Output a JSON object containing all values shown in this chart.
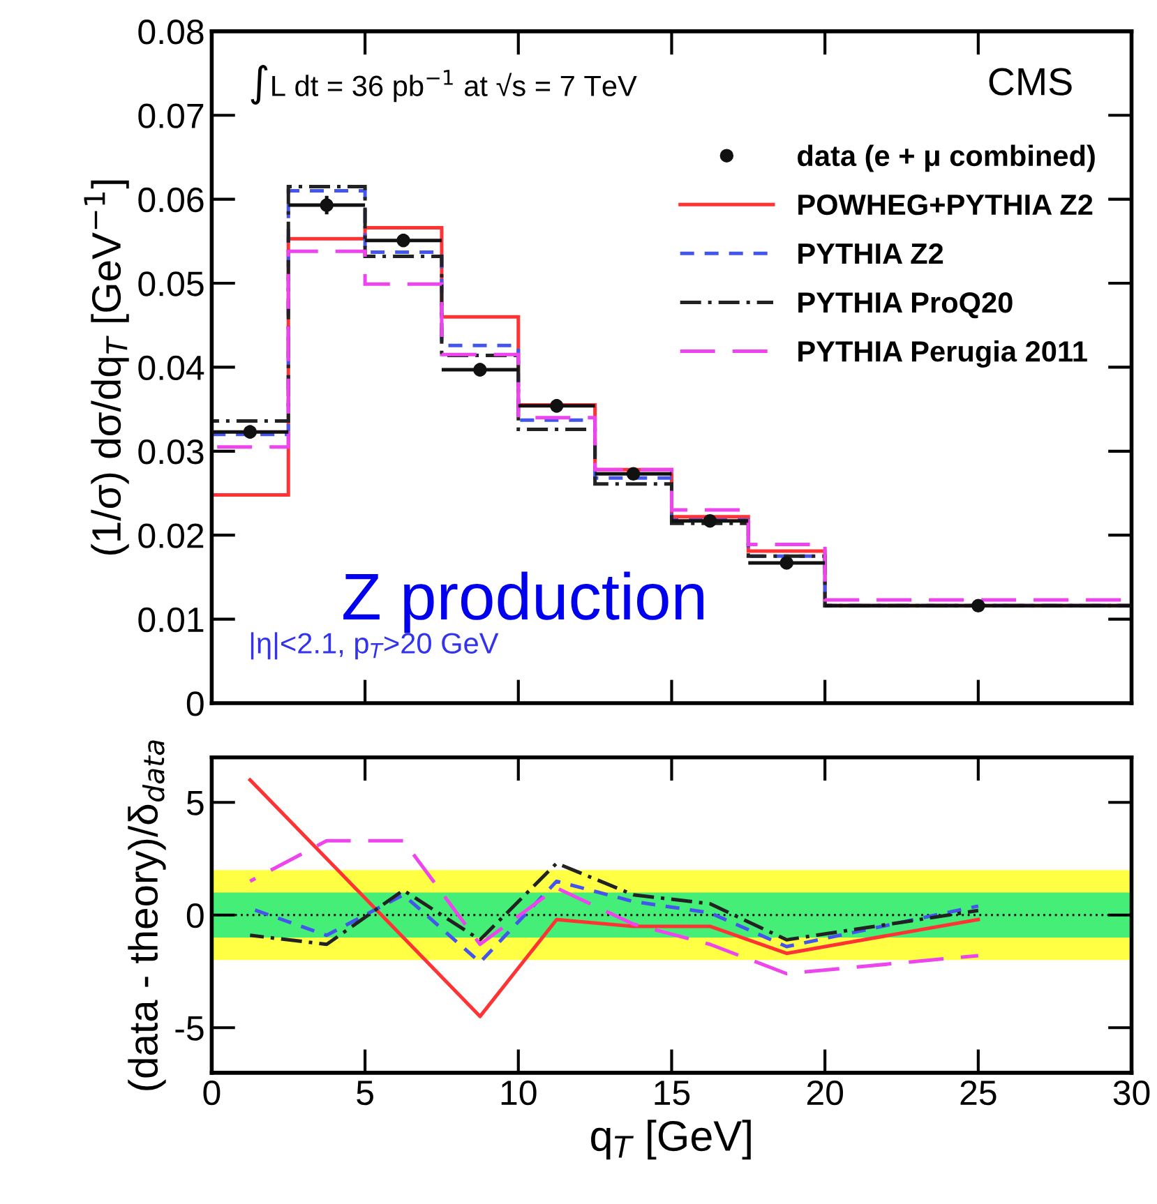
{
  "chart_data": [
    {
      "type": "histogram",
      "ylabel": "(1/σ) dσ/dq$_{T}$ [GeV$^{−1}$]",
      "bins": [
        0,
        2.5,
        5,
        7.5,
        10,
        12.5,
        15,
        17.5,
        20,
        30
      ],
      "xlim": [
        0,
        30
      ],
      "xticks": [
        0,
        5,
        10,
        15,
        20,
        25,
        30
      ],
      "ylim": [
        0,
        0.08
      ],
      "yticks": [
        0,
        0.01,
        0.02,
        0.03,
        0.04,
        0.05,
        0.06,
        0.07,
        0.08
      ],
      "tick_labels": "y",
      "grid": false,
      "legend": "top right",
      "annotations": [
        "∫L dt = 36 pb$^{−1}$ at √s = 7 TeV",
        "CMS",
        "Z production",
        "|η|<2.1, p$_{T}$>20 GeV"
      ],
      "series": [
        {
          "name": "data (e + μ combined)",
          "type": "scatter",
          "marker": "circle",
          "color": "#111111",
          "x": [
            1.25,
            3.75,
            6.25,
            8.75,
            11.25,
            13.75,
            16.25,
            18.75,
            25
          ],
          "values": [
            0.0323,
            0.0593,
            0.0551,
            0.0397,
            0.0354,
            0.0273,
            0.0217,
            0.0167,
            0.0116
          ],
          "errors": [
            0.0008,
            0.0011,
            0.0008,
            0.0008,
            0.0008,
            0.0007,
            0.0006,
            0.0006,
            0.0002
          ],
          "xerrors": [
            1.25,
            1.25,
            1.25,
            1.25,
            1.25,
            1.25,
            1.25,
            1.25,
            5
          ]
        },
        {
          "name": "POWHEG+PYTHIA Z2",
          "color": "#ff3333",
          "line_style": "solid",
          "values": [
            0.0248,
            0.0553,
            0.0566,
            0.046,
            0.0355,
            0.0278,
            0.0222,
            0.0181,
            0.0116
          ]
        },
        {
          "name": "PYTHIA Z2",
          "color": "#4455ee",
          "line_style": "dashed",
          "values": [
            0.032,
            0.061,
            0.0537,
            0.0426,
            0.0337,
            0.0268,
            0.0218,
            0.0175,
            0.0116
          ]
        },
        {
          "name": "PYTHIA ProQ20",
          "color": "#222222",
          "line_style": "dashdot",
          "values": [
            0.0336,
            0.0615,
            0.0532,
            0.0414,
            0.0326,
            0.0261,
            0.0214,
            0.0175,
            0.0116
          ]
        },
        {
          "name": "PYTHIA Perugia 2011",
          "color": "#ee44ee",
          "line_style": "longdash",
          "values": [
            0.0305,
            0.0538,
            0.0499,
            0.0415,
            0.034,
            0.0278,
            0.023,
            0.0189,
            0.0123
          ]
        }
      ]
    },
    {
      "type": "line",
      "xlabel": "q$_{T}$ [GeV]",
      "ylabel": "(data - theory)/δ$_{data}$",
      "xlim": [
        0,
        30
      ],
      "xticks": [
        0,
        5,
        10,
        15,
        20,
        25,
        30
      ],
      "ylim": [
        -7,
        7
      ],
      "yticks": [
        -5,
        0,
        5
      ],
      "grid": false,
      "bands": [
        {
          "axis": "y",
          "from": -2,
          "to": 2,
          "color": "#ffff44"
        },
        {
          "axis": "y",
          "from": -1,
          "to": 1,
          "color": "#44ee77"
        }
      ],
      "ref_lines": [
        {
          "axis": "y",
          "value": 0,
          "color": "#000000",
          "line_style": "dotted"
        }
      ],
      "x": [
        1.25,
        3.75,
        6.25,
        8.75,
        11.25,
        13.75,
        16.25,
        18.75,
        25
      ],
      "series": [
        {
          "color": "#ff3333",
          "line_style": "solid",
          "values": [
            6.0,
            2.5,
            -1.0,
            -4.5,
            -0.2,
            -0.5,
            -0.5,
            -1.7,
            -0.2
          ]
        },
        {
          "color": "#4455ee",
          "line_style": "dashed",
          "values": [
            0.3,
            -0.9,
            0.9,
            -2.1,
            1.5,
            0.6,
            0.1,
            -1.4,
            0.4
          ]
        },
        {
          "color": "#222222",
          "line_style": "dashdot",
          "values": [
            -0.9,
            -1.3,
            1.1,
            -1.1,
            2.3,
            0.9,
            0.5,
            -1.1,
            0.2
          ]
        },
        {
          "color": "#ee44ee",
          "line_style": "longdash",
          "values": [
            1.5,
            3.3,
            3.3,
            -1.3,
            1.2,
            -0.4,
            -1.3,
            -2.6,
            -1.8
          ]
        }
      ]
    }
  ]
}
